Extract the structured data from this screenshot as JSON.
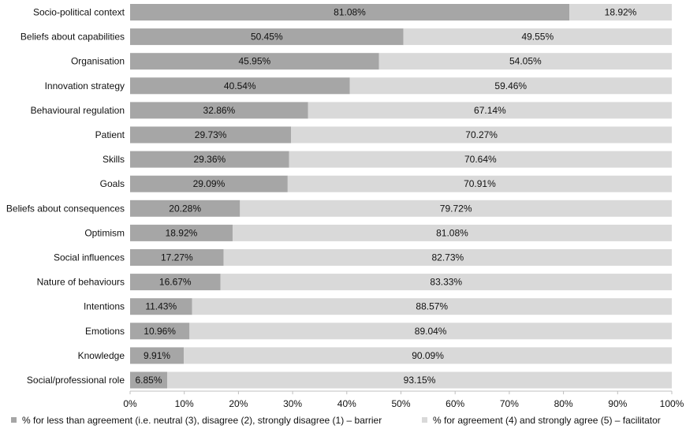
{
  "chart_data": {
    "type": "bar",
    "orientation": "horizontal",
    "stacked": true,
    "categories": [
      "Socio-political context",
      "Beliefs about capabilities",
      "Organisation",
      "Innovation strategy",
      "Behavioural regulation",
      "Patient",
      "Skills",
      "Goals",
      "Beliefs about consequences",
      "Optimism",
      "Social influences",
      "Nature of behaviours",
      "Intentions",
      "Emotions",
      "Knowledge",
      "Social/professional role"
    ],
    "series": [
      {
        "name": "% for less than agreement (i.e. neutral (3), disagree (2), strongly disagree (1) – barrier",
        "color": "#a6a6a6",
        "values": [
          81.08,
          50.45,
          45.95,
          40.54,
          32.86,
          29.73,
          29.36,
          29.09,
          20.28,
          18.92,
          17.27,
          16.67,
          11.43,
          10.96,
          9.91,
          6.85
        ],
        "labels": [
          "81.08%",
          "50.45%",
          "45.95%",
          "40.54%",
          "32.86%",
          "29.73%",
          "29.36%",
          "29.09%",
          "20.28%",
          "18.92%",
          "17.27%",
          "16.67%",
          "11.43%",
          "10.96%",
          "9.91%",
          "6.85%"
        ]
      },
      {
        "name": "% for agreement (4) and strongly agree (5) – facilitator",
        "color": "#d9d9d9",
        "values": [
          18.92,
          49.55,
          54.05,
          59.46,
          67.14,
          70.27,
          70.64,
          70.91,
          79.72,
          81.08,
          82.73,
          83.33,
          88.57,
          89.04,
          90.09,
          93.15
        ],
        "labels": [
          "18.92%",
          "49.55%",
          "54.05%",
          "59.46%",
          "67.14%",
          "70.27%",
          "70.64%",
          "70.91%",
          "79.72%",
          "81.08%",
          "82.73%",
          "83.33%",
          "88.57%",
          "89.04%",
          "90.09%",
          "93.15%"
        ]
      }
    ],
    "xlim": [
      0,
      100
    ],
    "xticks": [
      "0%",
      "10%",
      "20%",
      "30%",
      "40%",
      "50%",
      "60%",
      "70%",
      "80%",
      "90%",
      "100%"
    ],
    "legend_position": "bottom",
    "grid": false
  }
}
